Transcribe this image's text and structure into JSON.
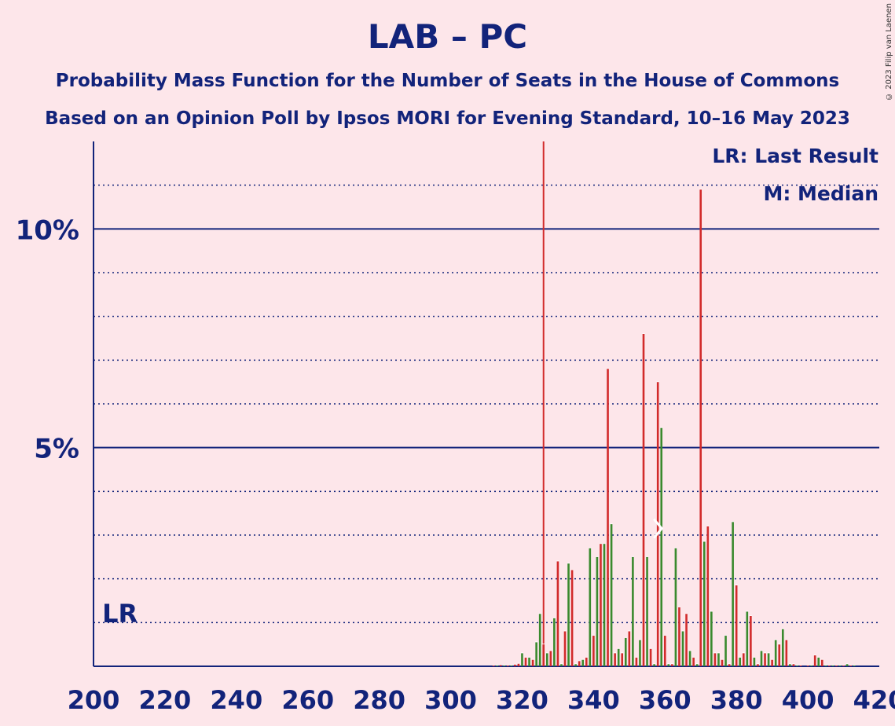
{
  "chart_data": {
    "type": "bar",
    "title": "LAB – PC",
    "subtitle": "Probability Mass Function for the Number of Seats in the House of Commons",
    "subtitle2": "Based on an Opinion Poll by Ipsos MORI for Evening Standard, 10–16 May 2023",
    "copyright": "© 2023 Filip van Laenen",
    "legend": {
      "lr": "LR: Last Result",
      "m": "M: Median",
      "placement": "top-right"
    },
    "x_ticks": [
      200,
      220,
      240,
      260,
      280,
      300,
      320,
      340,
      360,
      380,
      400,
      420
    ],
    "y_ticks": [
      {
        "value": 5,
        "label": "5%"
      },
      {
        "value": 10,
        "label": "10%"
      }
    ],
    "xlim": [
      200,
      420
    ],
    "ylim": [
      0,
      12
    ],
    "grid": true,
    "last_result": {
      "seats": 202,
      "label": "LR"
    },
    "median": {
      "seats": 358,
      "label": "M"
    },
    "threshold_line": 326,
    "colors": {
      "red": "#d22b2b",
      "green": "#3a8a2e",
      "navy": "#12237a",
      "background": "#fde6ea"
    },
    "series": [
      {
        "name": "red",
        "points": [
          [
            312,
            0.02
          ],
          [
            314,
            0.03
          ],
          [
            316,
            0.02
          ],
          [
            318,
            0.04
          ],
          [
            319,
            0.06
          ],
          [
            321,
            0.2
          ],
          [
            323,
            0.15
          ],
          [
            325,
            0.1
          ],
          [
            326,
            0.5
          ],
          [
            328,
            0.35
          ],
          [
            330,
            2.4
          ],
          [
            332,
            0.8
          ],
          [
            334,
            2.2
          ],
          [
            336,
            0.12
          ],
          [
            338,
            0.2
          ],
          [
            340,
            0.7
          ],
          [
            342,
            2.8
          ],
          [
            344,
            6.8
          ],
          [
            346,
            0.3
          ],
          [
            348,
            0.3
          ],
          [
            350,
            0.8
          ],
          [
            352,
            0.2
          ],
          [
            354,
            7.6
          ],
          [
            356,
            0.4
          ],
          [
            358,
            6.5
          ],
          [
            360,
            0.7
          ],
          [
            362,
            0.05
          ],
          [
            364,
            1.35
          ],
          [
            366,
            1.2
          ],
          [
            368,
            0.2
          ],
          [
            370,
            10.9
          ],
          [
            372,
            3.2
          ],
          [
            374,
            0.3
          ],
          [
            376,
            0.15
          ],
          [
            378,
            0.05
          ],
          [
            380,
            1.85
          ],
          [
            382,
            0.3
          ],
          [
            384,
            1.15
          ],
          [
            386,
            0.05
          ],
          [
            388,
            0.3
          ],
          [
            390,
            0.15
          ],
          [
            392,
            0.5
          ],
          [
            394,
            0.6
          ],
          [
            396,
            0.05
          ],
          [
            398,
            0.02
          ],
          [
            400,
            0.02
          ],
          [
            402,
            0.25
          ],
          [
            404,
            0.15
          ],
          [
            406,
            0.02
          ],
          [
            408,
            0.02
          ],
          [
            410,
            0.02
          ],
          [
            412,
            0.02
          ]
        ]
      },
      {
        "name": "green",
        "points": [
          [
            313,
            0.02
          ],
          [
            315,
            0.02
          ],
          [
            317,
            0.02
          ],
          [
            320,
            0.3
          ],
          [
            322,
            0.2
          ],
          [
            324,
            0.55
          ],
          [
            325,
            1.2
          ],
          [
            327,
            0.3
          ],
          [
            329,
            1.1
          ],
          [
            331,
            0.05
          ],
          [
            333,
            2.35
          ],
          [
            335,
            0.05
          ],
          [
            337,
            0.15
          ],
          [
            339,
            2.7
          ],
          [
            341,
            2.5
          ],
          [
            343,
            2.8
          ],
          [
            345,
            3.25
          ],
          [
            347,
            0.4
          ],
          [
            349,
            0.65
          ],
          [
            351,
            2.5
          ],
          [
            353,
            0.6
          ],
          [
            355,
            2.5
          ],
          [
            357,
            0.05
          ],
          [
            359,
            5.45
          ],
          [
            361,
            0.05
          ],
          [
            363,
            2.7
          ],
          [
            365,
            0.8
          ],
          [
            367,
            0.35
          ],
          [
            369,
            0.05
          ],
          [
            371,
            2.85
          ],
          [
            373,
            1.25
          ],
          [
            375,
            0.3
          ],
          [
            377,
            0.7
          ],
          [
            379,
            3.3
          ],
          [
            381,
            0.2
          ],
          [
            383,
            1.25
          ],
          [
            385,
            0.2
          ],
          [
            387,
            0.35
          ],
          [
            389,
            0.3
          ],
          [
            391,
            0.6
          ],
          [
            393,
            0.85
          ],
          [
            395,
            0.05
          ],
          [
            397,
            0.02
          ],
          [
            401,
            0.02
          ],
          [
            403,
            0.2
          ],
          [
            405,
            0.02
          ],
          [
            407,
            0.02
          ],
          [
            409,
            0.02
          ],
          [
            411,
            0.05
          ],
          [
            413,
            0.02
          ]
        ]
      }
    ]
  }
}
